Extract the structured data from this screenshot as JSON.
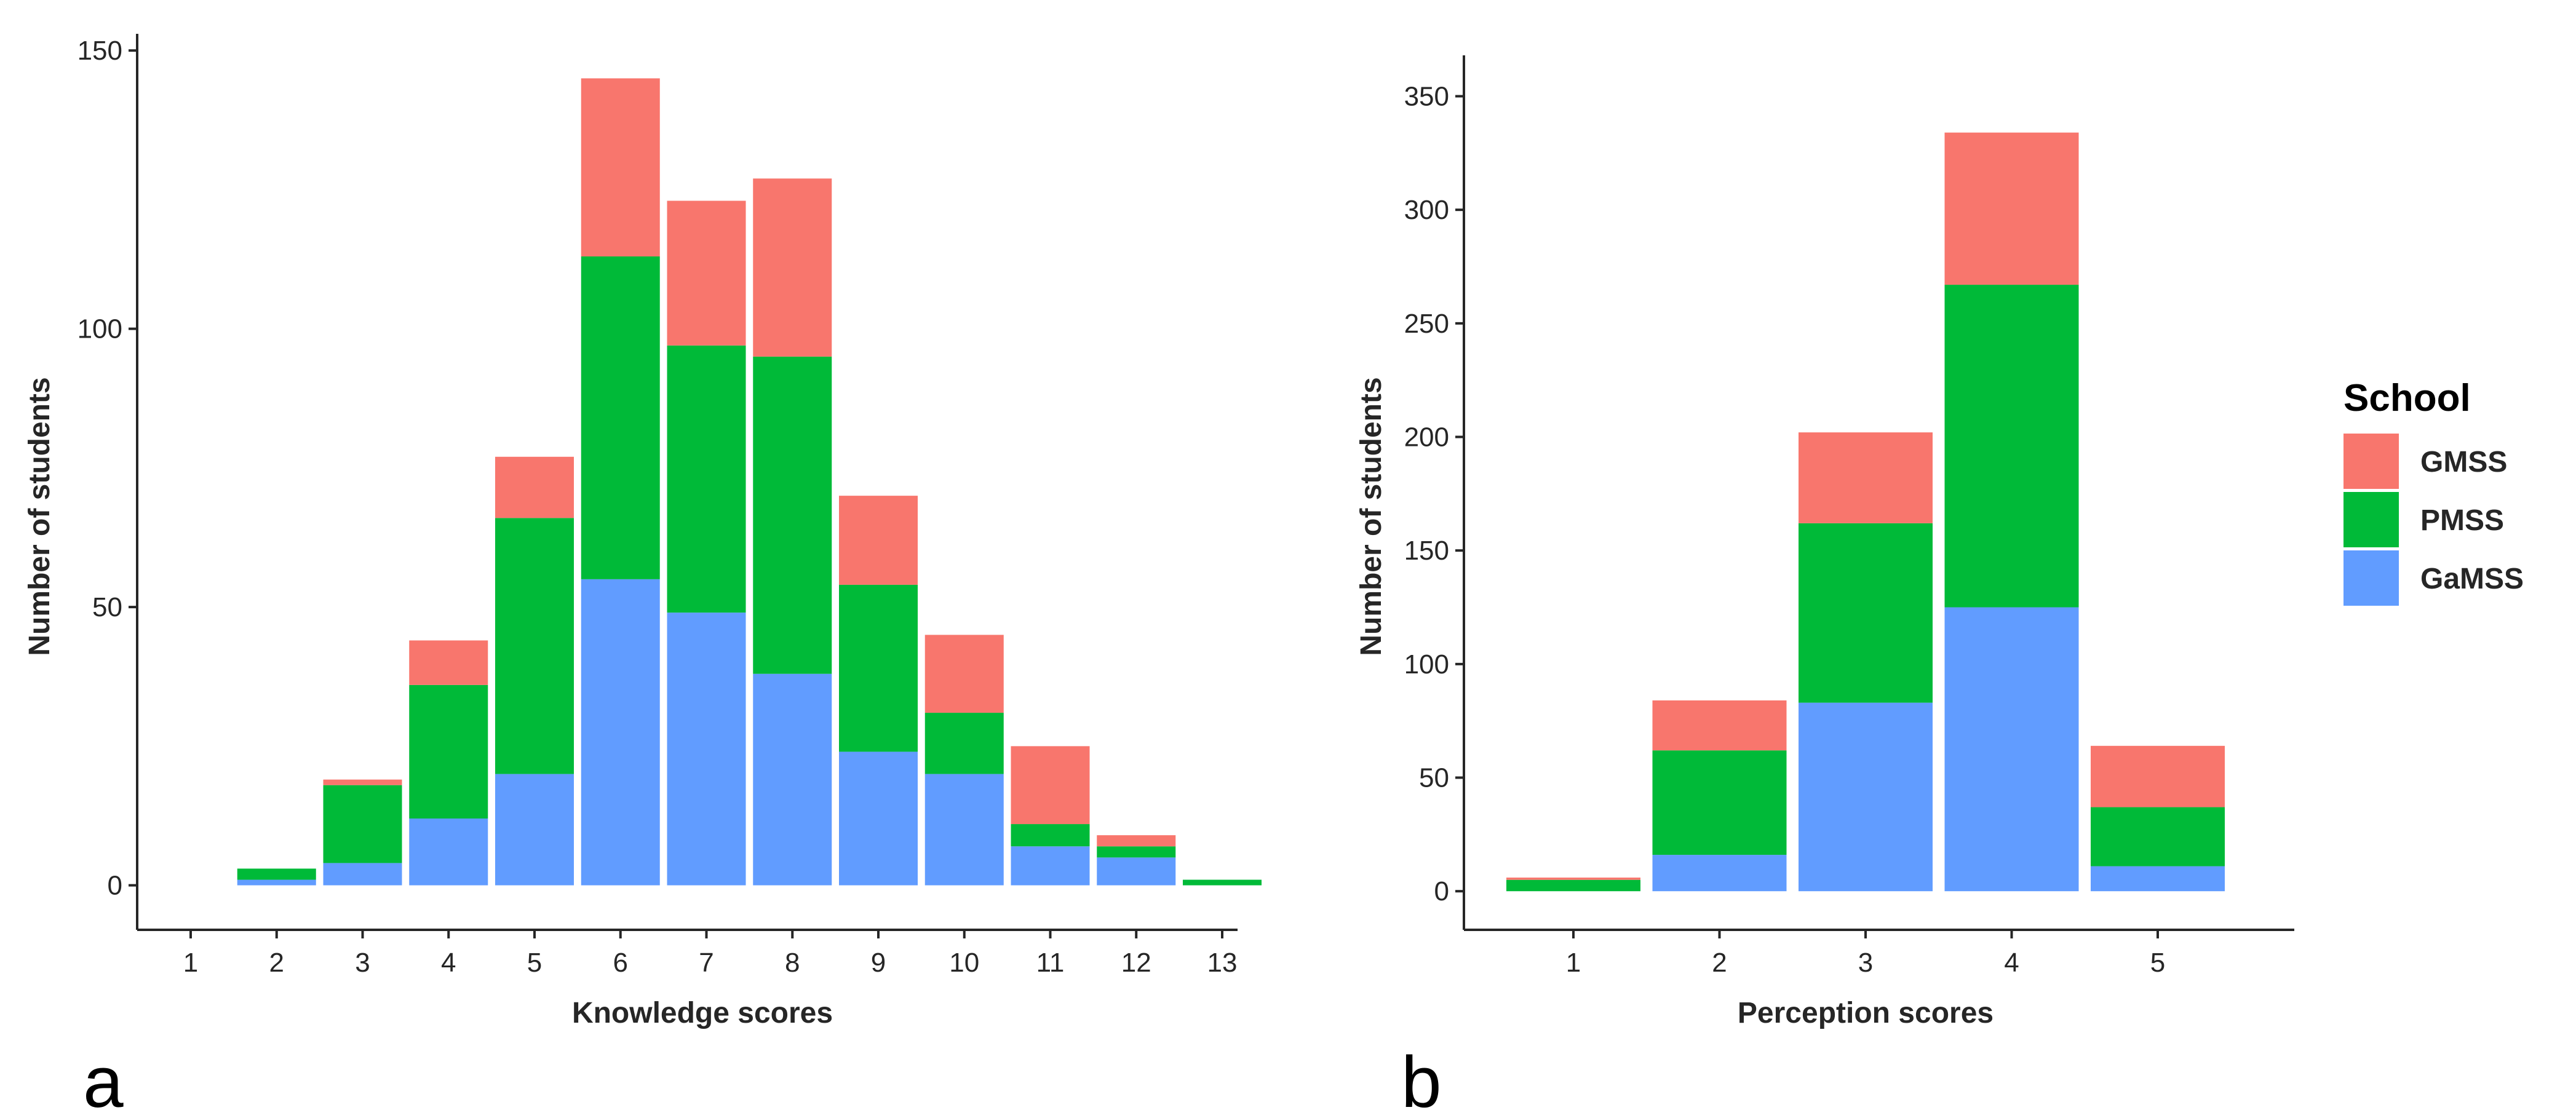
{
  "chart_data": [
    {
      "type": "bar",
      "stacked": true,
      "panel_label": "a",
      "categories": [
        "1",
        "2",
        "3",
        "4",
        "5",
        "6",
        "7",
        "8",
        "9",
        "10",
        "11",
        "12",
        "13"
      ],
      "series": [
        {
          "name": "GaMSS",
          "values": [
            0,
            1,
            4,
            12,
            20,
            55,
            49,
            38,
            24,
            20,
            7,
            5,
            0
          ]
        },
        {
          "name": "PMSS",
          "values": [
            0,
            2,
            14,
            24,
            46,
            58,
            48,
            57,
            30,
            11,
            4,
            2,
            1
          ]
        },
        {
          "name": "GMSS",
          "values": [
            0,
            0,
            1,
            8,
            11,
            32,
            26,
            32,
            16,
            14,
            14,
            2,
            0
          ]
        }
      ],
      "xlabel": "Knowledge scores",
      "ylabel": "Number of students",
      "ylim": [
        -8,
        153
      ],
      "yticks": [
        0,
        50,
        100,
        150
      ]
    },
    {
      "type": "bar",
      "stacked": true,
      "panel_label": "b",
      "categories": [
        "1",
        "2",
        "3",
        "4",
        "5"
      ],
      "series": [
        {
          "name": "GaMSS",
          "values": [
            0,
            16,
            83,
            125,
            11
          ]
        },
        {
          "name": "PMSS",
          "values": [
            5,
            46,
            79,
            142,
            26
          ]
        },
        {
          "name": "GMSS",
          "values": [
            1,
            22,
            40,
            67,
            27
          ]
        }
      ],
      "xlabel": "Perception scores",
      "ylabel": "Number of students",
      "ylim": [
        -17,
        368
      ],
      "yticks": [
        0,
        50,
        100,
        150,
        200,
        250,
        300,
        350
      ]
    }
  ],
  "legend": {
    "title": "School",
    "entries": [
      {
        "name": "GMSS",
        "color": "#F8766D"
      },
      {
        "name": "PMSS",
        "color": "#00BA38"
      },
      {
        "name": "GaMSS",
        "color": "#619CFF"
      }
    ]
  },
  "colors": {
    "GaMSS": "#619CFF",
    "PMSS": "#00BA38",
    "GMSS": "#F8766D",
    "axis": "#262626"
  }
}
